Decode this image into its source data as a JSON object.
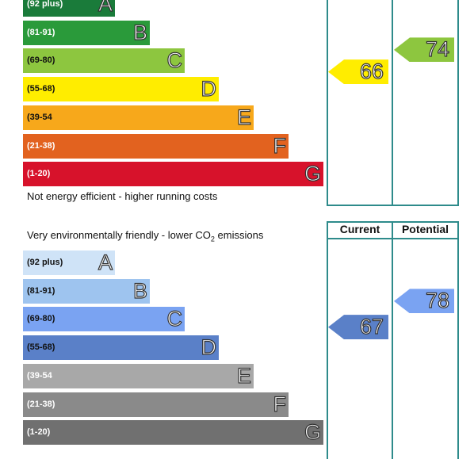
{
  "chart_data": [
    {
      "type": "bar",
      "categories": [
        "A",
        "B",
        "C",
        "D",
        "E",
        "F",
        "G"
      ],
      "ranges": [
        "(92 plus)",
        "(81-91)",
        "(69-80)",
        "(55-68)",
        "(39-54",
        "(21-38)",
        "(1-20)"
      ],
      "colors": [
        "#1a7b3a",
        "#2a9a3a",
        "#8dc63f",
        "#ffed00",
        "#f7a81b",
        "#e2621f",
        "#d7122b"
      ],
      "bottom_note": "Not energy efficient - higher running costs",
      "current": {
        "value": 66,
        "band": "D",
        "color": "#ffed00"
      },
      "potential": {
        "value": 74,
        "band": "C",
        "color": "#8dc63f"
      }
    },
    {
      "type": "bar",
      "categories": [
        "A",
        "B",
        "C",
        "D",
        "E",
        "F",
        "G"
      ],
      "ranges": [
        "(92 plus)",
        "(81-91)",
        "(69-80)",
        "(55-68)",
        "(39-54",
        "(21-38)",
        "(1-20)"
      ],
      "colors": [
        "#cfe3f7",
        "#9ec4ef",
        "#7aa3f2",
        "#5a80c8",
        "#a8a8a8",
        "#8a8a8a",
        "#707070"
      ],
      "top_note_before": "Very environmentally friendly - lower CO",
      "top_note_sub": "2",
      "top_note_after": " emissions",
      "column_headers": [
        "Current",
        "Potential"
      ],
      "current": {
        "value": 67,
        "band": "D",
        "color": "#5a80c8"
      },
      "potential": {
        "value": 78,
        "band": "C",
        "color": "#7aa3f2"
      }
    }
  ]
}
